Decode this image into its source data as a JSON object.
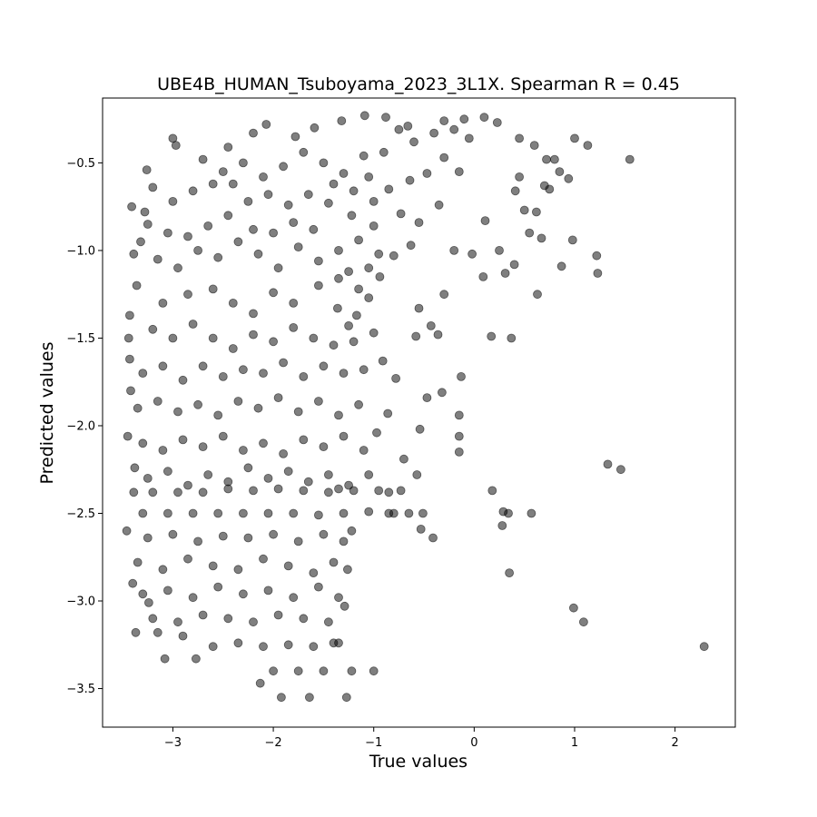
{
  "chart_data": {
    "type": "scatter",
    "title": "UBE4B_HUMAN_Tsuboyama_2023_3L1X. Spearman R = 0.45",
    "xlabel": "True values",
    "ylabel": "Predicted values",
    "xlim": [
      -3.7,
      2.6
    ],
    "ylim": [
      -3.72,
      -0.13
    ],
    "xticks": [
      -3,
      -2,
      -1,
      0,
      1,
      2
    ],
    "yticks": [
      -3.5,
      -3.0,
      -2.5,
      -2.0,
      -1.5,
      -1.0,
      -0.5
    ],
    "xtick_labels": [
      "−3",
      "−2",
      "−1",
      "0",
      "1",
      "2"
    ],
    "ytick_labels": [
      "−3.5",
      "−3.0",
      "−2.5",
      "−2.0",
      "−1.5",
      "−1.0",
      "−0.5"
    ],
    "grid": false,
    "marker_color": "#000000",
    "marker_alpha": 0.5,
    "points": [
      [
        1.55,
        -0.48
      ],
      [
        2.29,
        -3.26
      ],
      [
        1.46,
        -2.25
      ],
      [
        1.33,
        -2.22
      ],
      [
        1.22,
        -1.03
      ],
      [
        1.23,
        -1.13
      ],
      [
        1.09,
        -3.12
      ],
      [
        0.99,
        -3.04
      ],
      [
        0.98,
        -0.94
      ],
      [
        0.94,
        -0.59
      ],
      [
        0.87,
        -1.09
      ],
      [
        0.85,
        -0.55
      ],
      [
        0.72,
        -0.48
      ],
      [
        0.7,
        -0.63
      ],
      [
        0.67,
        -0.93
      ],
      [
        0.63,
        -1.25
      ],
      [
        0.57,
        -2.5
      ],
      [
        0.55,
        -0.9
      ],
      [
        0.35,
        -2.84
      ],
      [
        0.34,
        -2.5
      ],
      [
        0.37,
        -1.5
      ],
      [
        0.29,
        -2.49
      ],
      [
        0.28,
        -2.57
      ],
      [
        0.17,
        -1.49
      ],
      [
        0.18,
        -2.37
      ],
      [
        0.09,
        -1.15
      ],
      [
        -0.15,
        -1.94
      ],
      [
        -0.15,
        -2.06
      ],
      [
        -0.15,
        -2.15
      ],
      [
        -0.13,
        -1.72
      ],
      [
        -0.41,
        -2.64
      ],
      [
        -0.32,
        -1.81
      ],
      [
        -0.47,
        -1.84
      ],
      [
        -0.43,
        -1.43
      ],
      [
        -0.55,
        -1.33
      ],
      [
        -0.58,
        -1.49
      ],
      [
        -0.54,
        -2.02
      ],
      [
        -0.57,
        -2.28
      ],
      [
        -0.53,
        -2.59
      ],
      [
        -0.3,
        -1.25
      ],
      [
        -0.36,
        -1.48
      ],
      [
        -0.51,
        -2.5
      ],
      [
        1.0,
        -0.36
      ],
      [
        1.13,
        -0.4
      ],
      [
        0.8,
        -0.48
      ],
      [
        0.6,
        -0.4
      ],
      [
        0.45,
        -0.58
      ],
      [
        0.5,
        -0.77
      ],
      [
        0.4,
        -1.08
      ],
      [
        0.31,
        -1.13
      ],
      [
        0.25,
        -1.0
      ],
      [
        0.11,
        -0.83
      ],
      [
        -0.02,
        -1.02
      ],
      [
        -0.2,
        -1.0
      ],
      [
        -0.63,
        -0.97
      ],
      [
        -0.8,
        -1.03
      ],
      [
        -0.94,
        -1.15
      ],
      [
        -1.05,
        -1.27
      ],
      [
        -1.17,
        -1.37
      ],
      [
        -1.25,
        -1.43
      ],
      [
        -1.36,
        -1.33
      ],
      [
        -0.91,
        -1.63
      ],
      [
        -0.78,
        -1.73
      ],
      [
        -0.86,
        -1.93
      ],
      [
        -0.97,
        -2.04
      ],
      [
        -0.7,
        -2.19
      ],
      [
        -0.73,
        -2.37
      ],
      [
        -0.85,
        -2.5
      ],
      [
        -1.22,
        -2.6
      ],
      [
        -1.26,
        -2.82
      ],
      [
        -1.29,
        -3.03
      ],
      [
        -1.4,
        -3.24
      ],
      [
        -1.22,
        -3.4
      ],
      [
        -1.27,
        -3.55
      ],
      [
        -1.64,
        -3.55
      ],
      [
        -1.92,
        -3.55
      ],
      [
        -2.13,
        -3.47
      ],
      [
        -3.08,
        -3.33
      ],
      [
        -2.77,
        -3.33
      ],
      [
        -3.37,
        -3.18
      ],
      [
        -3.24,
        -3.01
      ],
      [
        -3.46,
        -2.6
      ],
      [
        -3.39,
        -2.38
      ],
      [
        -3.45,
        -2.06
      ],
      [
        -3.43,
        -1.62
      ],
      [
        -3.43,
        -1.37
      ],
      [
        -3.39,
        -1.02
      ],
      [
        -3.41,
        -0.75
      ],
      [
        -3.26,
        -0.54
      ],
      [
        -3.0,
        -0.36
      ],
      [
        -2.97,
        -0.4
      ],
      [
        -2.45,
        -0.41
      ],
      [
        -2.2,
        -0.33
      ],
      [
        -2.07,
        -0.28
      ],
      [
        -1.78,
        -0.35
      ],
      [
        -1.59,
        -0.3
      ],
      [
        -1.32,
        -0.26
      ],
      [
        -1.09,
        -0.23
      ],
      [
        -0.88,
        -0.24
      ],
      [
        -0.66,
        -0.29
      ],
      [
        -0.3,
        -0.26
      ],
      [
        -0.1,
        -0.25
      ],
      [
        0.1,
        -0.24
      ],
      [
        0.23,
        -0.27
      ],
      [
        0.45,
        -0.36
      ],
      [
        0.41,
        -0.66
      ],
      [
        0.62,
        -0.78
      ],
      [
        0.75,
        -0.65
      ],
      [
        -0.05,
        -0.36
      ],
      [
        -0.2,
        -0.31
      ],
      [
        -0.4,
        -0.33
      ],
      [
        -0.6,
        -0.38
      ],
      [
        -0.75,
        -0.31
      ],
      [
        -0.9,
        -0.44
      ],
      [
        -0.15,
        -0.55
      ],
      [
        -0.3,
        -0.47
      ],
      [
        -0.47,
        -0.56
      ],
      [
        -0.64,
        -0.6
      ],
      [
        -0.85,
        -0.65
      ],
      [
        -1.05,
        -0.58
      ],
      [
        -0.35,
        -0.74
      ],
      [
        -0.55,
        -0.84
      ],
      [
        -0.73,
        -0.79
      ],
      [
        -1.0,
        -0.86
      ],
      [
        -1.22,
        -0.8
      ],
      [
        -1.45,
        -0.73
      ],
      [
        -1.65,
        -0.68
      ],
      [
        -1.85,
        -0.74
      ],
      [
        -2.05,
        -0.68
      ],
      [
        -2.25,
        -0.72
      ],
      [
        -2.45,
        -0.8
      ],
      [
        -2.65,
        -0.86
      ],
      [
        -2.85,
        -0.92
      ],
      [
        -3.05,
        -0.9
      ],
      [
        -3.25,
        -0.85
      ],
      [
        -3.15,
        -1.05
      ],
      [
        -2.95,
        -1.1
      ],
      [
        -2.75,
        -1.0
      ],
      [
        -2.55,
        -1.04
      ],
      [
        -2.35,
        -0.95
      ],
      [
        -2.15,
        -1.02
      ],
      [
        -1.95,
        -1.1
      ],
      [
        -1.75,
        -0.98
      ],
      [
        -1.55,
        -1.06
      ],
      [
        -1.35,
        -1.0
      ],
      [
        -1.15,
        -0.94
      ],
      [
        -0.95,
        -1.02
      ],
      [
        -1.6,
        -0.88
      ],
      [
        -1.8,
        -0.84
      ],
      [
        -2.0,
        -0.9
      ],
      [
        -2.2,
        -0.88
      ],
      [
        -2.4,
        -0.62
      ],
      [
        -2.6,
        -0.62
      ],
      [
        -2.8,
        -0.66
      ],
      [
        -3.0,
        -0.72
      ],
      [
        -3.2,
        -0.64
      ],
      [
        -2.7,
        -0.48
      ],
      [
        -2.5,
        -0.55
      ],
      [
        -2.3,
        -0.5
      ],
      [
        -2.1,
        -0.58
      ],
      [
        -1.9,
        -0.52
      ],
      [
        -1.7,
        -0.44
      ],
      [
        -1.5,
        -0.5
      ],
      [
        -1.3,
        -0.56
      ],
      [
        -1.1,
        -0.46
      ],
      [
        -1.4,
        -0.62
      ],
      [
        -1.2,
        -0.66
      ],
      [
        -1.0,
        -0.72
      ],
      [
        -2.85,
        -1.25
      ],
      [
        -3.1,
        -1.3
      ],
      [
        -2.6,
        -1.22
      ],
      [
        -2.4,
        -1.3
      ],
      [
        -2.2,
        -1.36
      ],
      [
        -2.0,
        -1.24
      ],
      [
        -1.8,
        -1.3
      ],
      [
        -1.55,
        -1.2
      ],
      [
        -1.35,
        -1.16
      ],
      [
        -1.15,
        -1.22
      ],
      [
        -1.25,
        -1.12
      ],
      [
        -1.05,
        -1.1
      ],
      [
        -3.2,
        -1.45
      ],
      [
        -3.0,
        -1.5
      ],
      [
        -2.8,
        -1.42
      ],
      [
        -2.6,
        -1.5
      ],
      [
        -2.4,
        -1.56
      ],
      [
        -2.2,
        -1.48
      ],
      [
        -2.0,
        -1.52
      ],
      [
        -1.8,
        -1.44
      ],
      [
        -1.6,
        -1.5
      ],
      [
        -1.4,
        -1.54
      ],
      [
        -1.2,
        -1.52
      ],
      [
        -1.0,
        -1.47
      ],
      [
        -3.3,
        -1.7
      ],
      [
        -3.1,
        -1.66
      ],
      [
        -2.9,
        -1.74
      ],
      [
        -2.7,
        -1.66
      ],
      [
        -2.5,
        -1.72
      ],
      [
        -2.3,
        -1.68
      ],
      [
        -2.1,
        -1.7
      ],
      [
        -1.9,
        -1.64
      ],
      [
        -1.7,
        -1.72
      ],
      [
        -1.5,
        -1.66
      ],
      [
        -1.3,
        -1.7
      ],
      [
        -1.1,
        -1.68
      ],
      [
        -3.35,
        -1.9
      ],
      [
        -3.15,
        -1.86
      ],
      [
        -2.95,
        -1.92
      ],
      [
        -2.75,
        -1.88
      ],
      [
        -2.55,
        -1.94
      ],
      [
        -2.35,
        -1.86
      ],
      [
        -2.15,
        -1.9
      ],
      [
        -1.95,
        -1.84
      ],
      [
        -1.75,
        -1.92
      ],
      [
        -1.55,
        -1.86
      ],
      [
        -1.35,
        -1.94
      ],
      [
        -1.15,
        -1.88
      ],
      [
        -3.3,
        -2.1
      ],
      [
        -3.1,
        -2.14
      ],
      [
        -2.9,
        -2.08
      ],
      [
        -2.7,
        -2.12
      ],
      [
        -2.5,
        -2.06
      ],
      [
        -2.3,
        -2.14
      ],
      [
        -2.1,
        -2.1
      ],
      [
        -1.9,
        -2.16
      ],
      [
        -1.7,
        -2.08
      ],
      [
        -1.5,
        -2.12
      ],
      [
        -1.3,
        -2.06
      ],
      [
        -1.1,
        -2.14
      ],
      [
        -3.25,
        -2.3
      ],
      [
        -3.05,
        -2.26
      ],
      [
        -2.85,
        -2.34
      ],
      [
        -2.65,
        -2.28
      ],
      [
        -2.45,
        -2.32
      ],
      [
        -2.25,
        -2.24
      ],
      [
        -2.05,
        -2.3
      ],
      [
        -1.85,
        -2.26
      ],
      [
        -1.65,
        -2.32
      ],
      [
        -1.45,
        -2.28
      ],
      [
        -1.25,
        -2.34
      ],
      [
        -1.05,
        -2.28
      ],
      [
        -3.2,
        -2.38
      ],
      [
        -2.95,
        -2.38
      ],
      [
        -2.7,
        -2.38
      ],
      [
        -2.45,
        -2.36
      ],
      [
        -2.2,
        -2.37
      ],
      [
        -1.95,
        -2.36
      ],
      [
        -1.7,
        -2.37
      ],
      [
        -1.45,
        -2.38
      ],
      [
        -1.2,
        -2.37
      ],
      [
        -0.95,
        -2.37
      ],
      [
        -0.85,
        -2.38
      ],
      [
        -1.35,
        -2.36
      ],
      [
        -3.3,
        -2.5
      ],
      [
        -3.05,
        -2.5
      ],
      [
        -2.8,
        -2.5
      ],
      [
        -2.55,
        -2.5
      ],
      [
        -2.3,
        -2.5
      ],
      [
        -2.05,
        -2.5
      ],
      [
        -1.8,
        -2.5
      ],
      [
        -1.55,
        -2.51
      ],
      [
        -1.3,
        -2.5
      ],
      [
        -1.05,
        -2.49
      ],
      [
        -0.8,
        -2.5
      ],
      [
        -0.65,
        -2.5
      ],
      [
        -3.25,
        -2.64
      ],
      [
        -3.0,
        -2.62
      ],
      [
        -2.75,
        -2.66
      ],
      [
        -2.5,
        -2.63
      ],
      [
        -2.25,
        -2.64
      ],
      [
        -2.0,
        -2.62
      ],
      [
        -1.75,
        -2.66
      ],
      [
        -1.5,
        -2.62
      ],
      [
        -1.3,
        -2.66
      ],
      [
        -3.35,
        -2.78
      ],
      [
        -3.1,
        -2.82
      ],
      [
        -2.85,
        -2.76
      ],
      [
        -2.6,
        -2.8
      ],
      [
        -2.35,
        -2.82
      ],
      [
        -2.1,
        -2.76
      ],
      [
        -1.85,
        -2.8
      ],
      [
        -1.6,
        -2.84
      ],
      [
        -1.4,
        -2.78
      ],
      [
        -3.3,
        -2.96
      ],
      [
        -3.05,
        -2.94
      ],
      [
        -2.8,
        -2.98
      ],
      [
        -2.55,
        -2.92
      ],
      [
        -2.3,
        -2.96
      ],
      [
        -2.05,
        -2.94
      ],
      [
        -1.8,
        -2.98
      ],
      [
        -1.55,
        -2.92
      ],
      [
        -1.35,
        -2.98
      ],
      [
        -3.2,
        -3.1
      ],
      [
        -2.95,
        -3.12
      ],
      [
        -2.7,
        -3.08
      ],
      [
        -2.45,
        -3.1
      ],
      [
        -2.2,
        -3.12
      ],
      [
        -1.95,
        -3.08
      ],
      [
        -1.7,
        -3.1
      ],
      [
        -1.45,
        -3.12
      ],
      [
        -2.6,
        -3.26
      ],
      [
        -2.35,
        -3.24
      ],
      [
        -2.1,
        -3.26
      ],
      [
        -1.85,
        -3.25
      ],
      [
        -1.6,
        -3.26
      ],
      [
        -1.35,
        -3.24
      ],
      [
        -2.0,
        -3.4
      ],
      [
        -1.75,
        -3.4
      ],
      [
        -1.5,
        -3.4
      ],
      [
        -1.0,
        -3.4
      ],
      [
        -2.9,
        -3.2
      ],
      [
        -3.15,
        -3.18
      ],
      [
        -3.4,
        -2.9
      ],
      [
        -3.38,
        -2.24
      ],
      [
        -3.42,
        -1.8
      ],
      [
        -3.44,
        -1.5
      ],
      [
        -3.36,
        -1.2
      ],
      [
        -3.32,
        -0.95
      ],
      [
        -3.28,
        -0.78
      ]
    ]
  }
}
